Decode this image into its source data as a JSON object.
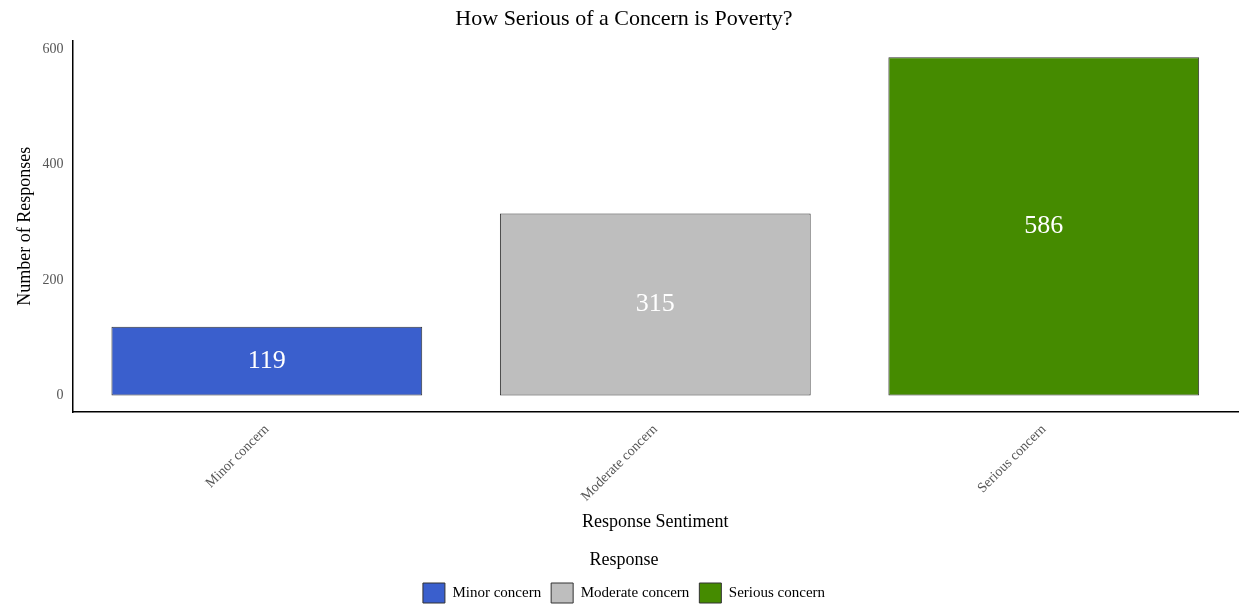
{
  "chart_data": {
    "type": "bar",
    "title": "How Serious of a Concern is Poverty?",
    "xlabel": "Response Sentiment",
    "ylabel": "Number of Responses",
    "legend_title": "Response",
    "categories": [
      "Minor concern",
      "Moderate concern",
      "Serious concern"
    ],
    "series": [
      {
        "name": "Minor concern",
        "color": "#3a5fcd",
        "values": [
          119,
          null,
          null
        ]
      },
      {
        "name": "Moderate concern",
        "color": "#bebebe",
        "values": [
          null,
          315,
          null
        ]
      },
      {
        "name": "Serious concern",
        "color": "#458b00",
        "values": [
          null,
          null,
          586
        ]
      }
    ],
    "ylim": [
      -29,
      615
    ],
    "yticks": [
      0,
      200,
      400,
      600
    ],
    "grid": false,
    "legend": "bottom",
    "data_labels": true
  }
}
